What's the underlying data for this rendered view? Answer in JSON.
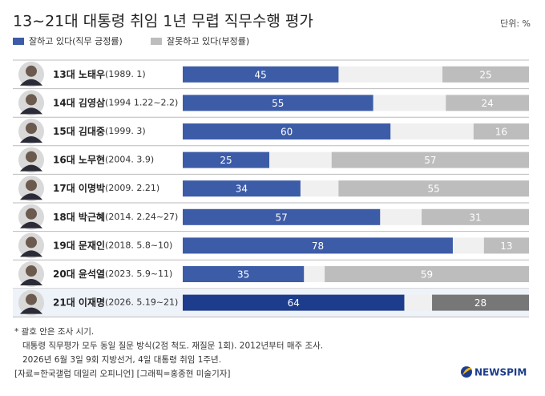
{
  "chart_data": {
    "type": "diverging-bar",
    "title": "13~21대 대통령 취임 1년 무렵 직무수행 평가",
    "unit": "단위: %",
    "categories": [
      "13대 노태우",
      "14대 김영삼",
      "15대 김대중",
      "16대 노무현",
      "17대 이명박",
      "18대 박근혜",
      "19대 문재인",
      "20대 윤석열",
      "21대 이재명"
    ],
    "periods": [
      "(1989. 1)",
      "(1994 1.22~2.2)",
      "(1999. 3)",
      "(2004. 3.9)",
      "(2009. 2.21)",
      "(2014. 2.24~27)",
      "(2018. 5.8~10)",
      "(2023. 5.9~11)",
      "(2026. 5.19~21)"
    ],
    "series": [
      {
        "name": "잘하고 있다(직무 긍정률)",
        "color": "#3c5ca8",
        "highlight_color": "#1d3d8c",
        "values": [
          45,
          55,
          60,
          25,
          34,
          57,
          78,
          35,
          64
        ]
      },
      {
        "name": "잘못하고 있다(부정률)",
        "color": "#bdbdbd",
        "highlight_color": "#777777",
        "values": [
          25,
          24,
          16,
          57,
          55,
          31,
          13,
          59,
          28
        ]
      }
    ],
    "highlight_index": 8,
    "xlim": [
      0,
      100
    ],
    "notes": [
      "* 괄호 안은 조사 시기.",
      "대통령 직무평가 모두 동일 질문 방식(2점 척도. 재질문 1회). 2012년부터 매주 조사.",
      "2026년 6월 3일 9회 지방선거, 4일 대통령 취임 1주년.",
      "[자료=한국갤럽 데일리 오피니언] [그래픽=홍종현 미술기자]"
    ],
    "logo": "NEWSPIM"
  }
}
